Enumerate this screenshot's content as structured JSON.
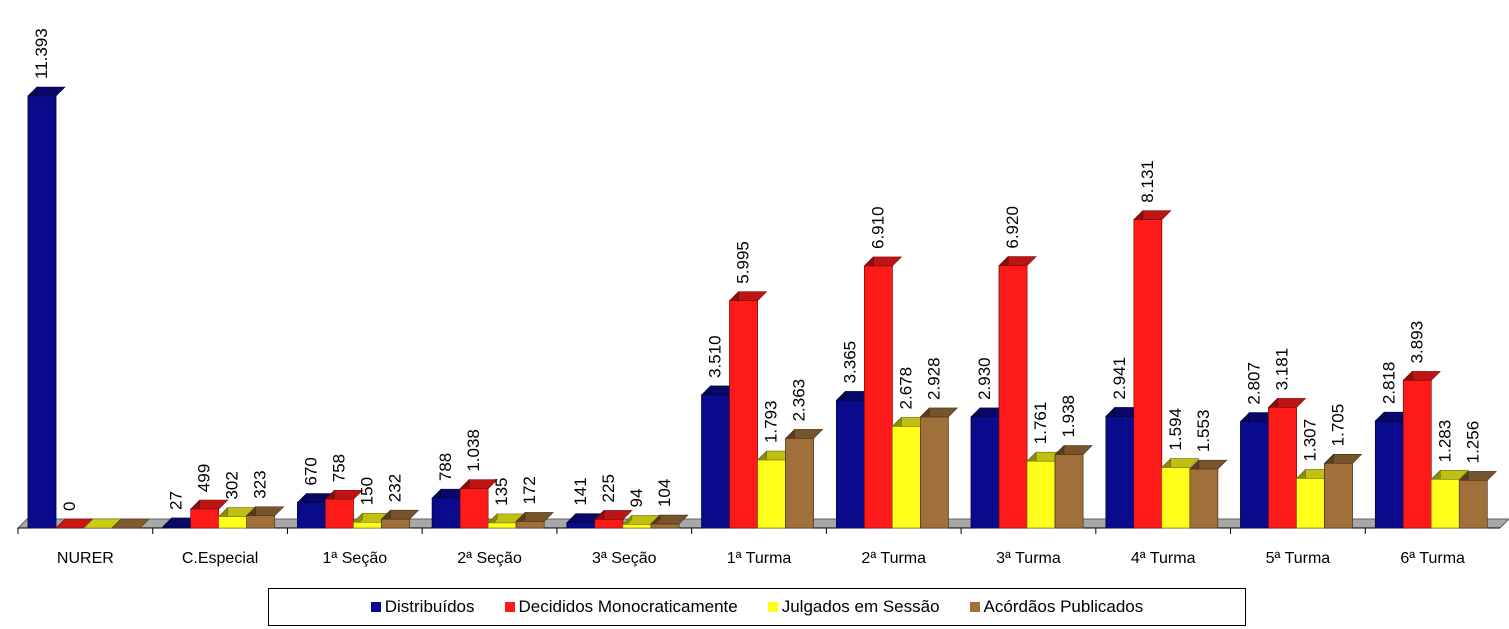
{
  "chart_data": {
    "type": "bar",
    "categories": [
      "NURER",
      "C.Especial",
      "1ª Seção",
      "2ª Seção",
      "3ª Seção",
      "1ª Turma",
      "2ª Turma",
      "3ª Turma",
      "4ª Turma",
      "5ª Turma",
      "6ª Turma"
    ],
    "series": [
      {
        "name": "Distribuídos",
        "color": "#0a0a8c",
        "values": [
          11393,
          27,
          670,
          788,
          141,
          3510,
          3365,
          2930,
          2941,
          2807,
          2818
        ],
        "labels": [
          "11.393",
          "27",
          "670",
          "788",
          "141",
          "3.510",
          "3.365",
          "2.930",
          "2.941",
          "2.807",
          "2.818"
        ]
      },
      {
        "name": "Decididos Monocraticamente",
        "color": "#ff1a1a",
        "values": [
          0,
          499,
          758,
          1038,
          225,
          5995,
          6910,
          6920,
          8131,
          3181,
          3893
        ],
        "labels": [
          "0",
          "499",
          "758",
          "1.038",
          "225",
          "5.995",
          "6.910",
          "6.920",
          "8.131",
          "3.181",
          "3.893"
        ]
      },
      {
        "name": "Julgados em Sessão",
        "color": "#ffff1a",
        "values": [
          0,
          302,
          150,
          135,
          94,
          1793,
          2678,
          1761,
          1594,
          1307,
          1283
        ],
        "labels": [
          "",
          "302",
          "150",
          "135",
          "94",
          "1.793",
          "2.678",
          "1.761",
          "1.594",
          "1.307",
          "1.283"
        ]
      },
      {
        "name": "Acórdãos Publicados",
        "color": "#a0703a",
        "values": [
          0,
          323,
          232,
          172,
          104,
          2363,
          2928,
          1938,
          1553,
          1705,
          1256
        ],
        "labels": [
          "",
          "323",
          "232",
          "172",
          "104",
          "2.363",
          "2.928",
          "1.938",
          "1.553",
          "1.705",
          "1.256"
        ]
      }
    ],
    "ylim": [
      0,
      11393
    ],
    "legend": "bottom",
    "grid": false
  }
}
